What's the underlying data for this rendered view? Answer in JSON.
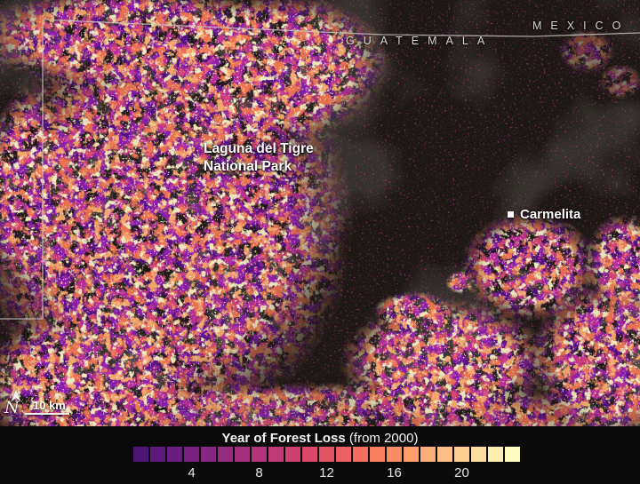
{
  "map": {
    "country_labels": {
      "mexico": "MEXICO",
      "guatemala": "GUATEMALA"
    },
    "park_label": {
      "line1": "Laguna del Tigre",
      "line2": "National Park"
    },
    "settlement_label": "Carmelita",
    "scale_label": "10 km",
    "north_label": "N",
    "border_color": "#cbc7c2"
  },
  "legend": {
    "title_bold": "Year of Forest Loss",
    "title_note": " (from 2000)",
    "background": "#0a0a0a",
    "swatches": [
      "#4f1478",
      "#5d187d",
      "#6b1d80",
      "#792280",
      "#862781",
      "#952c7f",
      "#a4317d",
      "#b2357a",
      "#c03b75",
      "#cd416f",
      "#da4769",
      "#e45265",
      "#ec6061",
      "#f56d5d",
      "#f97d61",
      "#fb8d66",
      "#fe9d6c",
      "#feae78",
      "#febe85",
      "#fece91",
      "#fddea0",
      "#fcedb0",
      "#fcfdbf"
    ],
    "ticks": [
      {
        "label": "4",
        "swatch_index": 4
      },
      {
        "label": "8",
        "swatch_index": 8
      },
      {
        "label": "12",
        "swatch_index": 12
      },
      {
        "label": "16",
        "swatch_index": 16
      },
      {
        "label": "20",
        "swatch_index": 20
      }
    ]
  }
}
